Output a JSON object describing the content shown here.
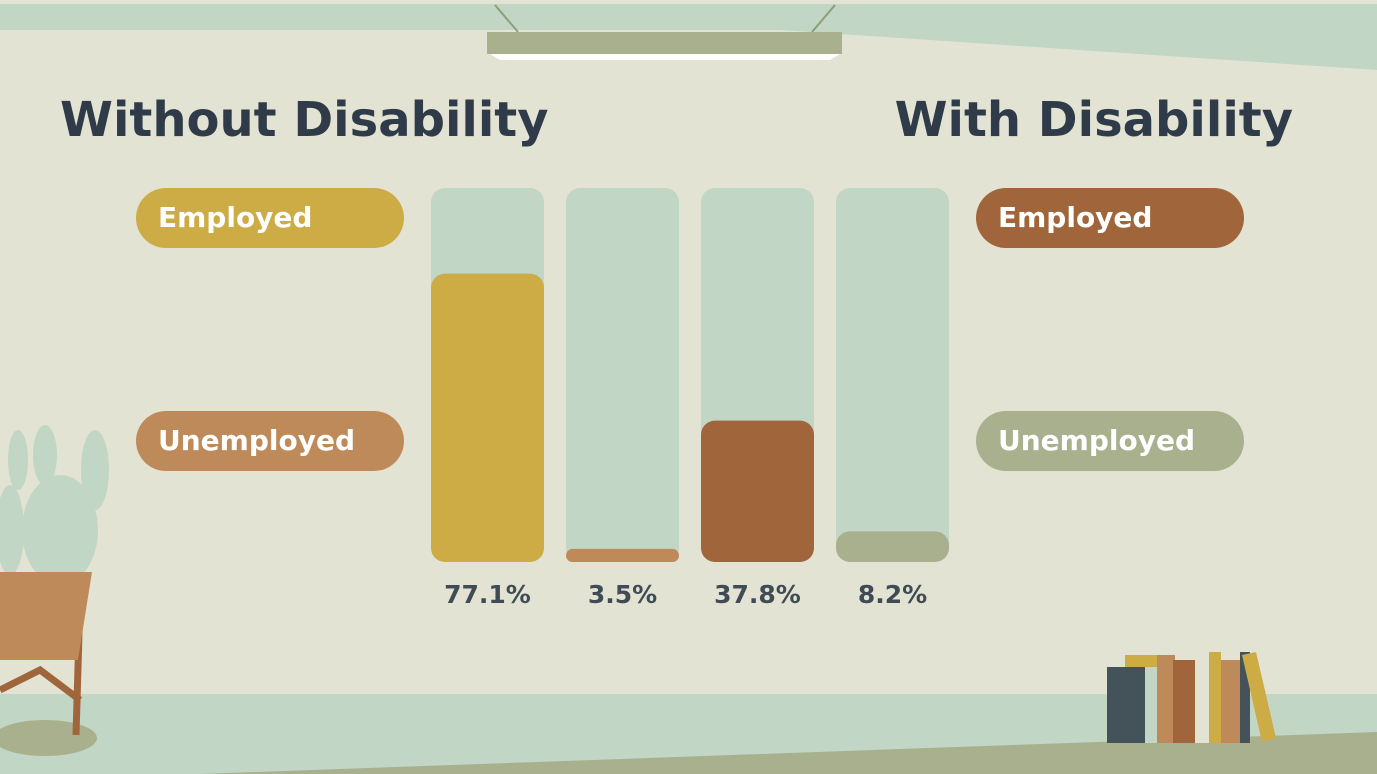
{
  "chart_data": [
    {
      "type": "bar",
      "title": "Without Disability",
      "ylim": [
        0,
        100
      ],
      "series": [
        {
          "name": "Employed",
          "color": "#cdab45",
          "values": [
            77.1
          ],
          "value_labels": [
            "77.1%"
          ]
        },
        {
          "name": "Unemployed",
          "color": "#bf8a5a",
          "values": [
            3.5
          ],
          "value_labels": [
            "3.5%"
          ]
        }
      ]
    },
    {
      "type": "bar",
      "title": "With Disability",
      "ylim": [
        0,
        100
      ],
      "series": [
        {
          "name": "Employed",
          "color": "#a0653b",
          "values": [
            37.8
          ],
          "value_labels": [
            "37.8%"
          ]
        },
        {
          "name": "Unemployed",
          "color": "#a8b08e",
          "values": [
            8.2
          ],
          "value_labels": [
            "8.2%"
          ]
        }
      ]
    }
  ]
}
